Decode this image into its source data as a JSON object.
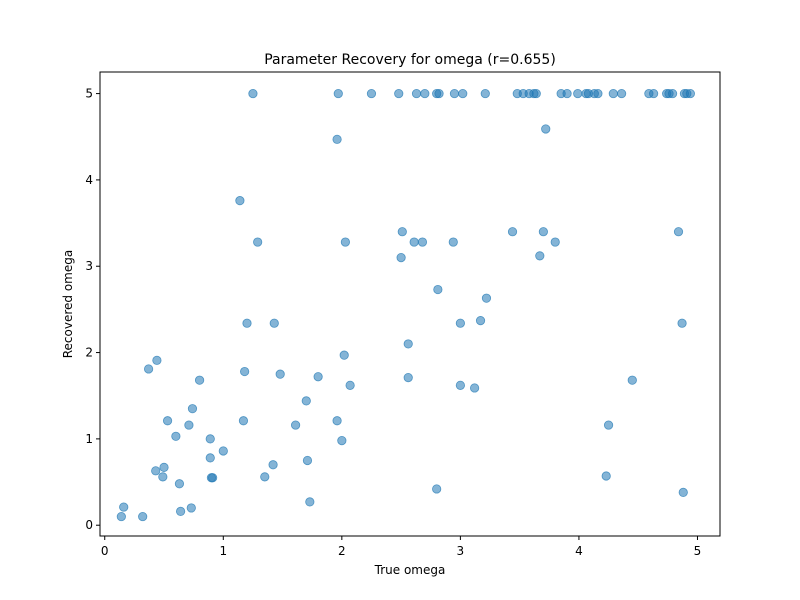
{
  "chart_data": {
    "type": "scatter",
    "title": "Parameter Recovery for omega (r=0.655)",
    "xlabel": "True omega",
    "ylabel": "Recovered omega",
    "xlim": [
      -0.04,
      5.19
    ],
    "ylim": [
      -0.125,
      5.25
    ],
    "xticks": [
      0,
      1,
      2,
      3,
      4,
      5
    ],
    "yticks": [
      0,
      1,
      2,
      3,
      4,
      5
    ],
    "grid": false,
    "marker_color": "#1f77b4",
    "marker_alpha": 0.55,
    "series": [
      {
        "x": [
          1.25,
          1.97,
          2.25,
          2.48,
          2.63,
          2.7,
          2.8,
          2.82,
          2.95,
          3.02,
          3.21,
          3.48,
          3.53,
          3.58,
          3.62,
          3.64,
          3.85,
          3.9,
          3.99,
          4.06,
          4.08,
          4.13,
          4.16,
          4.29,
          4.36,
          4.59,
          4.63,
          4.74,
          4.76,
          4.79,
          4.89,
          4.91,
          4.94,
          1.96,
          3.72,
          1.14,
          1.29,
          2.03,
          2.51,
          2.61,
          2.68,
          2.94,
          3.44,
          3.7,
          3.8,
          2.5,
          3.67,
          4.84,
          1.2,
          1.43,
          2.81,
          3.22,
          3.0,
          3.17,
          4.87,
          2.56,
          0.44,
          2.02,
          0.37,
          1.18,
          1.48,
          1.8,
          2.56,
          2.07,
          0.8,
          3.0,
          3.12,
          4.45,
          0.74,
          1.7,
          0.53,
          1.17,
          1.96,
          0.71,
          1.61,
          0.6,
          0.89,
          2.0,
          1.0,
          0.89,
          1.71,
          0.5,
          0.43,
          1.42,
          0.49,
          0.9,
          0.91,
          1.35,
          4.23,
          0.63,
          0.64,
          2.8,
          4.88,
          1.73,
          0.73,
          0.16,
          0.14,
          0.32,
          4.25
        ],
        "y": [
          5.0,
          5.0,
          5.0,
          5.0,
          5.0,
          5.0,
          5.0,
          5.0,
          5.0,
          5.0,
          5.0,
          5.0,
          5.0,
          5.0,
          5.0,
          5.0,
          5.0,
          5.0,
          5.0,
          5.0,
          5.0,
          5.0,
          5.0,
          5.0,
          5.0,
          5.0,
          5.0,
          5.0,
          5.0,
          5.0,
          5.0,
          5.0,
          5.0,
          4.47,
          4.59,
          3.76,
          3.28,
          3.28,
          3.4,
          3.28,
          3.28,
          3.28,
          3.4,
          3.4,
          3.28,
          3.1,
          3.12,
          3.4,
          2.34,
          2.34,
          2.73,
          2.63,
          2.34,
          2.37,
          2.34,
          2.1,
          1.91,
          1.97,
          1.81,
          1.78,
          1.75,
          1.72,
          1.71,
          1.62,
          1.68,
          1.62,
          1.59,
          1.68,
          1.35,
          1.44,
          1.21,
          1.21,
          1.21,
          1.16,
          1.16,
          1.03,
          1.0,
          0.98,
          0.86,
          0.78,
          0.75,
          0.67,
          0.63,
          0.7,
          0.56,
          0.55,
          0.55,
          0.56,
          0.57,
          0.48,
          0.16,
          0.42,
          0.38,
          0.27,
          0.2,
          0.21,
          0.1,
          0.1,
          1.16
        ]
      }
    ]
  }
}
